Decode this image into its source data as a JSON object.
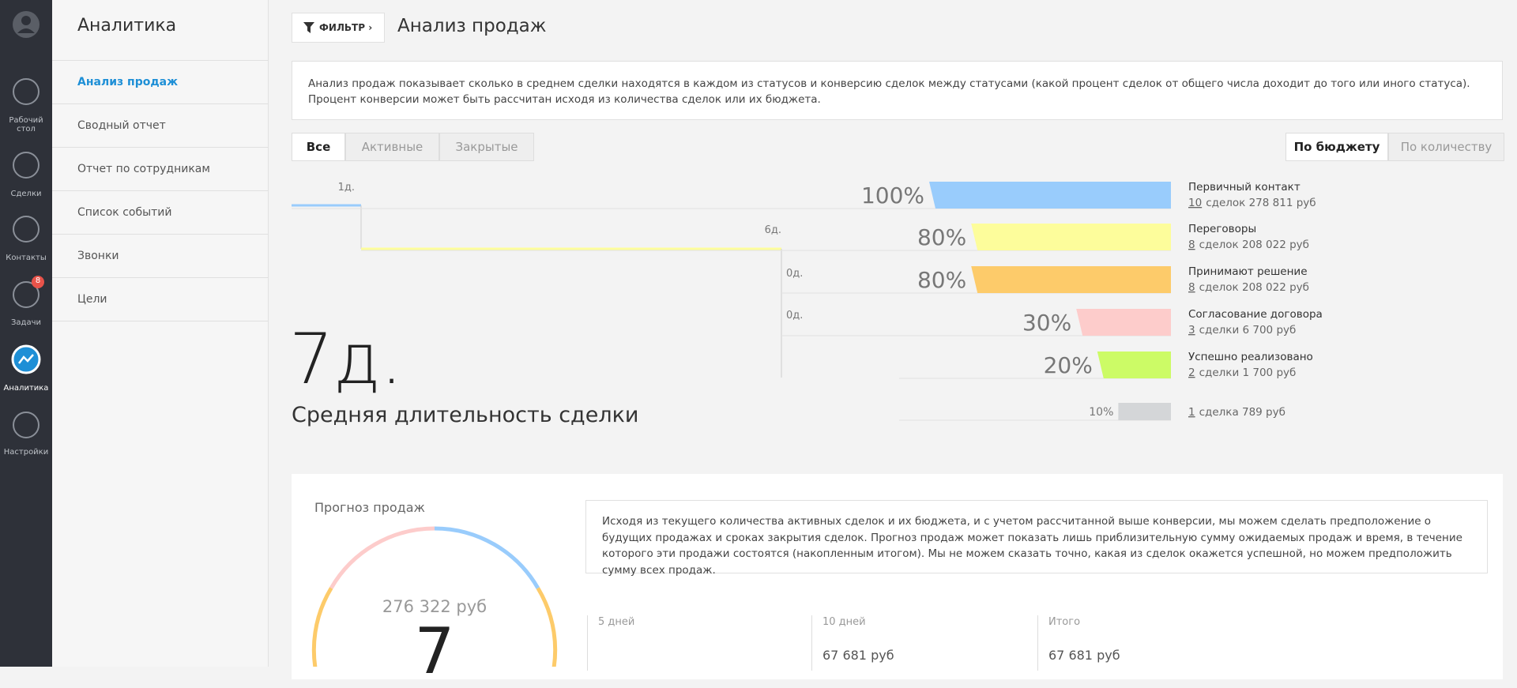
{
  "sidebar": {
    "nav": [
      "Рабочий стол",
      "Сделки",
      "Контакты",
      "Задачи",
      "Аналитика",
      "Настройки"
    ],
    "badge": "8"
  },
  "submenu": {
    "title": "Аналитика",
    "items": [
      "Анализ продаж",
      "Сводный отчет",
      "Отчет по сотрудникам",
      "Список событий",
      "Звонки",
      "Цели"
    ]
  },
  "header": {
    "filter": "ФИЛЬТР",
    "title": "Анализ продаж"
  },
  "description": "Анализ продаж показывает сколько в среднем сделки находятся в каждом из статусов и конверсию сделок между статусами (какой процент сделок от общего числа доходит до того или иного статуса). Процент конверсии может быть рассчитан исходя из количества сделок или их бюджета.",
  "tabs": {
    "status": [
      "Все",
      "Активные",
      "Закрытые"
    ],
    "mode": [
      "По бюджету",
      "По количеству"
    ]
  },
  "funnel": {
    "stages": [
      {
        "name": "Первичный контакт",
        "count": "10",
        "rest": "сделок 278 811 руб",
        "percent": 100,
        "percent_label": "100%",
        "color": "#99ccfc"
      },
      {
        "name": "Переговоры",
        "count": "8",
        "rest": "сделок 208 022 руб",
        "percent": 80,
        "percent_label": "80%",
        "color": "#fdfd9b"
      },
      {
        "name": "Принимают решение",
        "count": "8",
        "rest": "сделок 208 022 руб",
        "percent": 80,
        "percent_label": "80%",
        "color": "#fdcb6a"
      },
      {
        "name": "Согласование договора",
        "count": "3",
        "rest": "сделки 6 700 руб",
        "percent": 30,
        "percent_label": "30%",
        "color": "#fdcccb"
      },
      {
        "name": "Успешно реализовано",
        "count": "2",
        "rest": "сделки 1 700 руб",
        "percent": 20,
        "percent_label": "20%",
        "color": "#ccfb66"
      }
    ],
    "lost": {
      "count": "1",
      "rest": "сделка 789 руб",
      "percent": 10,
      "percent_label": "10%",
      "color": "#d4d6d8"
    },
    "durations": [
      "1д.",
      "6д.",
      "0д.",
      "0д."
    ]
  },
  "average": {
    "value": "7д.",
    "label": "Средняя длительность сделки"
  },
  "forecast": {
    "title": "Прогноз продаж",
    "total": "276 322 руб",
    "days": "7",
    "description": "Исходя из текущего количества активных сделок и их бюджета, и с учетом рассчитанной выше конверсии, мы можем сделать предположение о будущих продажах и сроках закрытия сделок. Прогноз продаж может показать лишь приблизительную сумму ожидаемых продаж и время, в течение которого эти продажи состоятся (накопленным итогом). Мы не можем сказать точно, какая из сделок окажется успешной, но можем предположить сумму всех продаж.",
    "columns": [
      {
        "label": "5 дней"
      },
      {
        "label": "10 дней",
        "value": "67 681 руб"
      },
      {
        "label": "Итого",
        "value": "67 681 руб"
      }
    ]
  }
}
